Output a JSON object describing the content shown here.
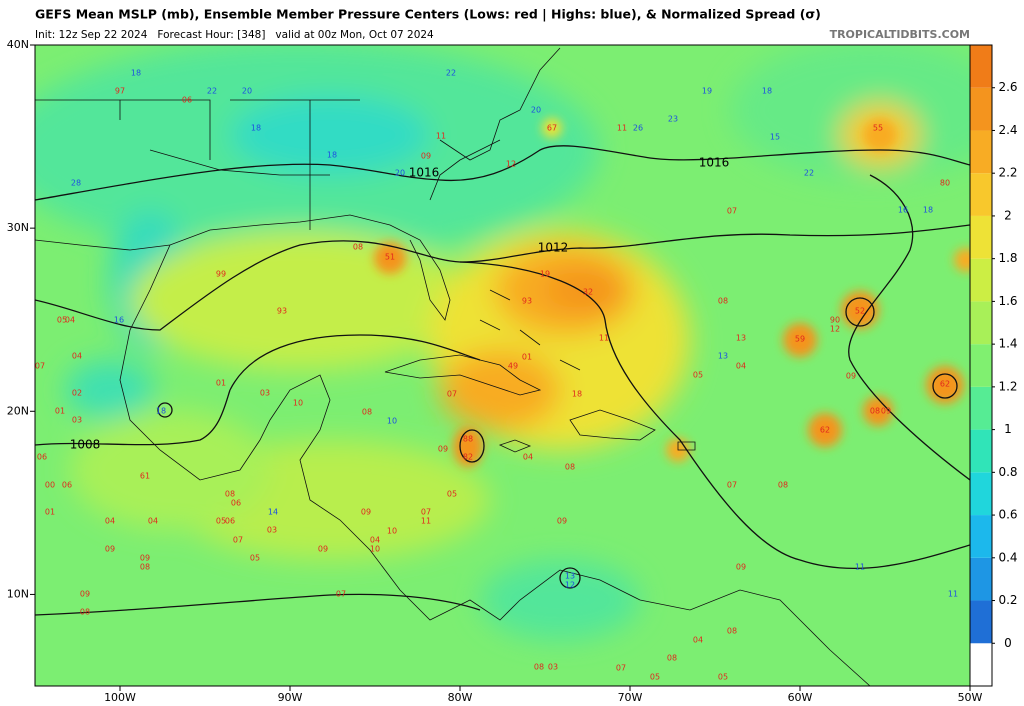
{
  "header": {
    "title": "GEFS Mean MSLP (mb), Ensemble Member Pressure Centers (Lows: red | Highs: blue), & Normalized Spread (σ)",
    "subtitle": "Init: 12z Sep 22 2024   Forecast Hour: [348]   valid at 00z Mon, Oct 07 2024",
    "site": "TROPICALTIDBITS.COM"
  },
  "map": {
    "xlim": [
      -105,
      -50
    ],
    "ylim": [
      5,
      40
    ],
    "xticks": [
      {
        "value": -100,
        "label": "100W"
      },
      {
        "value": -90,
        "label": "90W"
      },
      {
        "value": -80,
        "label": "80W"
      },
      {
        "value": -70,
        "label": "70W"
      },
      {
        "value": -60,
        "label": "60W"
      },
      {
        "value": -50,
        "label": "50W"
      }
    ],
    "yticks": [
      {
        "value": 10,
        "label": "10N"
      },
      {
        "value": 20,
        "label": "20N"
      },
      {
        "value": 30,
        "label": "30N"
      },
      {
        "value": 40,
        "label": "40N"
      }
    ],
    "isobar_labels": [
      "1016",
      "1016",
      "1012",
      "1008"
    ],
    "low_color": "#e0281e",
    "high_color": "#1e50e0",
    "lows": [
      "97",
      "06",
      "51",
      "08",
      "99",
      "93",
      "01",
      "03",
      "10",
      "08",
      "07",
      "88",
      "82",
      "09",
      "04",
      "08",
      "05",
      "07",
      "11",
      "09",
      "49",
      "01",
      "93",
      "32",
      "19",
      "11",
      "18",
      "12",
      "09",
      "11",
      "67",
      "11",
      "07",
      "08",
      "13",
      "04",
      "05",
      "59",
      "52",
      "90",
      "12",
      "09",
      "62",
      "62",
      "08",
      "09",
      "55",
      "80",
      "07",
      "08",
      "09",
      "08",
      "04",
      "08",
      "05",
      "05",
      "07",
      "08",
      "03",
      "07",
      "04",
      "01",
      "03",
      "02",
      "06",
      "00",
      "06",
      "01",
      "04",
      "04",
      "09",
      "09",
      "08",
      "09",
      "08",
      "07",
      "05",
      "07",
      "03",
      "09",
      "05",
      "06",
      "04",
      "10",
      "09",
      "10",
      "05",
      "04",
      "61",
      "08",
      "06"
    ],
    "highs": [
      "18",
      "22",
      "20",
      "18",
      "18",
      "20",
      "22",
      "20",
      "26",
      "23",
      "19",
      "18",
      "15",
      "22",
      "16",
      "18",
      "28",
      "13",
      "10",
      "14",
      "13",
      "12",
      "11",
      "11",
      "18",
      "16"
    ]
  },
  "colorbar": {
    "lim": [
      -0.2,
      2.8
    ],
    "ticks": [
      0,
      0.2,
      0.4,
      0.6,
      0.8,
      1,
      1.2,
      1.4,
      1.6,
      1.8,
      2,
      2.2,
      2.4,
      2.6
    ],
    "colors": [
      "#ffffff",
      "#1f6fd6",
      "#1e96e4",
      "#1cb8ec",
      "#20d6dc",
      "#30e4b8",
      "#56ec94",
      "#80f070",
      "#a8f058",
      "#ccee44",
      "#eee236",
      "#f8c82c",
      "#f8ac24",
      "#f4941e",
      "#f07c18"
    ]
  }
}
